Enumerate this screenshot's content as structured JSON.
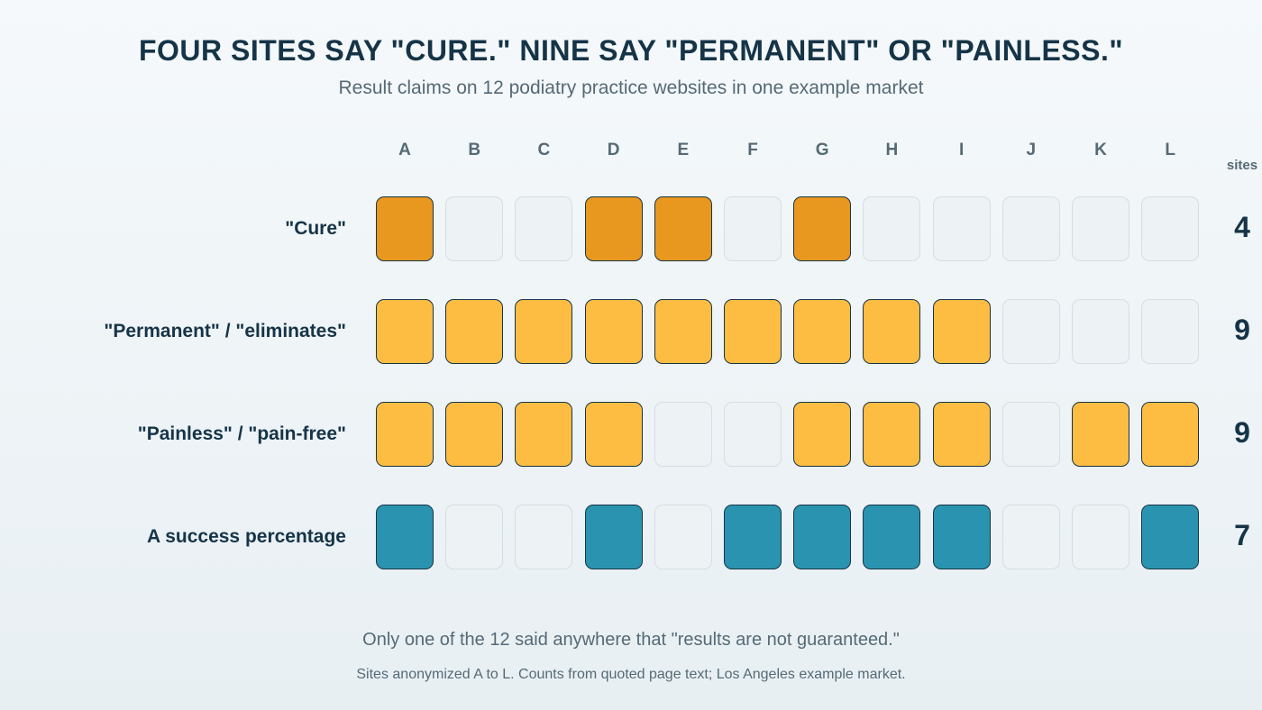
{
  "title": "FOUR SITES SAY \"CURE.\" NINE SAY \"PERMANENT\" OR \"PAINLESS.\"",
  "subtitle": "Result claims on 12 podiatry practice websites in one example market",
  "count_header": "sites",
  "note": "Only one of the 12 said anywhere that \"results are not guaranteed.\"",
  "source": "Sites anonymized A to L. Counts from quoted page text; Los Angeles example market.",
  "colors": {
    "empty_fill": "#edf2f5",
    "empty_border": "#d6dee3",
    "filled_border": "#163447"
  },
  "chart_data": {
    "type": "heatmap",
    "columns": [
      "A",
      "B",
      "C",
      "D",
      "E",
      "F",
      "G",
      "H",
      "I",
      "J",
      "K",
      "L"
    ],
    "rows": [
      {
        "label": "\"Cure\"",
        "color": "#e8981e",
        "values": [
          1,
          0,
          0,
          1,
          1,
          0,
          1,
          0,
          0,
          0,
          0,
          0
        ],
        "count": "4"
      },
      {
        "label": "\"Permanent\" / \"eliminates\"",
        "color": "#fdbd43",
        "values": [
          1,
          1,
          1,
          1,
          1,
          1,
          1,
          1,
          1,
          0,
          0,
          0
        ],
        "count": "9"
      },
      {
        "label": "\"Painless\" / \"pain-free\"",
        "color": "#fdbd43",
        "values": [
          1,
          1,
          1,
          1,
          0,
          0,
          1,
          1,
          1,
          0,
          1,
          1
        ],
        "count": "9"
      },
      {
        "label": "A success percentage",
        "color": "#2a94b0",
        "values": [
          1,
          0,
          0,
          1,
          0,
          1,
          1,
          1,
          1,
          0,
          0,
          1
        ],
        "count": "7"
      }
    ]
  }
}
